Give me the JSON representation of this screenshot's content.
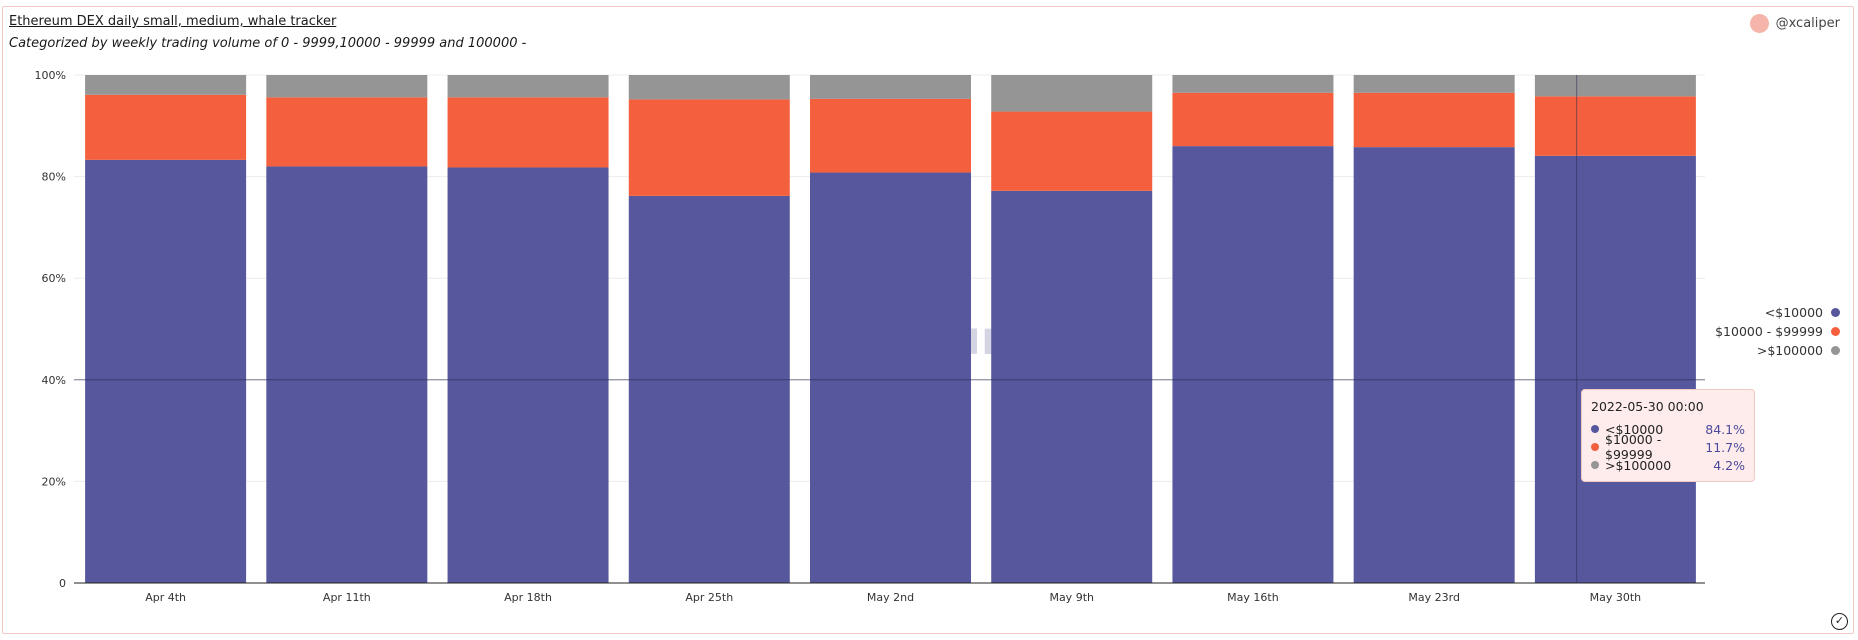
{
  "header": {
    "title": "Ethereum DEX daily small, medium, whale tracker",
    "subtitle": "Categorized by weekly trading volume of 0 - 9999,10000 - 99999 and 100000 -",
    "author": "@xcaliper"
  },
  "watermark": {
    "text": "Dune"
  },
  "tooltip": {
    "title": "2022-05-30 00:00",
    "rows": [
      {
        "label": "<$10000",
        "value": "84.1%",
        "color": "#56579c"
      },
      {
        "label": "$10000 - $99999",
        "value": "11.7%",
        "color": "#f4603e"
      },
      {
        "label": ">$100000",
        "value": "4.2%",
        "color": "#959595"
      }
    ]
  },
  "chart_data": {
    "type": "bar",
    "stacked": true,
    "categories": [
      "Apr 4th",
      "Apr 11th",
      "Apr 18th",
      "Apr 25th",
      "May 2nd",
      "May 9th",
      "May 16th",
      "May 23rd",
      "May 30th"
    ],
    "series": [
      {
        "name": "<$10000",
        "color": "#56579c",
        "values": [
          83.3,
          82.0,
          81.8,
          76.2,
          80.8,
          77.2,
          86.0,
          85.8,
          84.1
        ]
      },
      {
        "name": "$10000 - $99999",
        "color": "#f4603e",
        "values": [
          12.8,
          13.6,
          13.8,
          19.0,
          14.5,
          15.6,
          10.5,
          10.7,
          11.7
        ]
      },
      {
        "name": ">$100000",
        "color": "#959595",
        "values": [
          3.9,
          4.4,
          4.4,
          4.8,
          4.7,
          7.2,
          3.5,
          3.5,
          4.2
        ]
      }
    ],
    "y_ticks": [
      "0",
      "20%",
      "40%",
      "60%",
      "80%",
      "100%"
    ],
    "ylim": [
      0,
      100
    ],
    "legend_position": "right",
    "grid": true
  }
}
